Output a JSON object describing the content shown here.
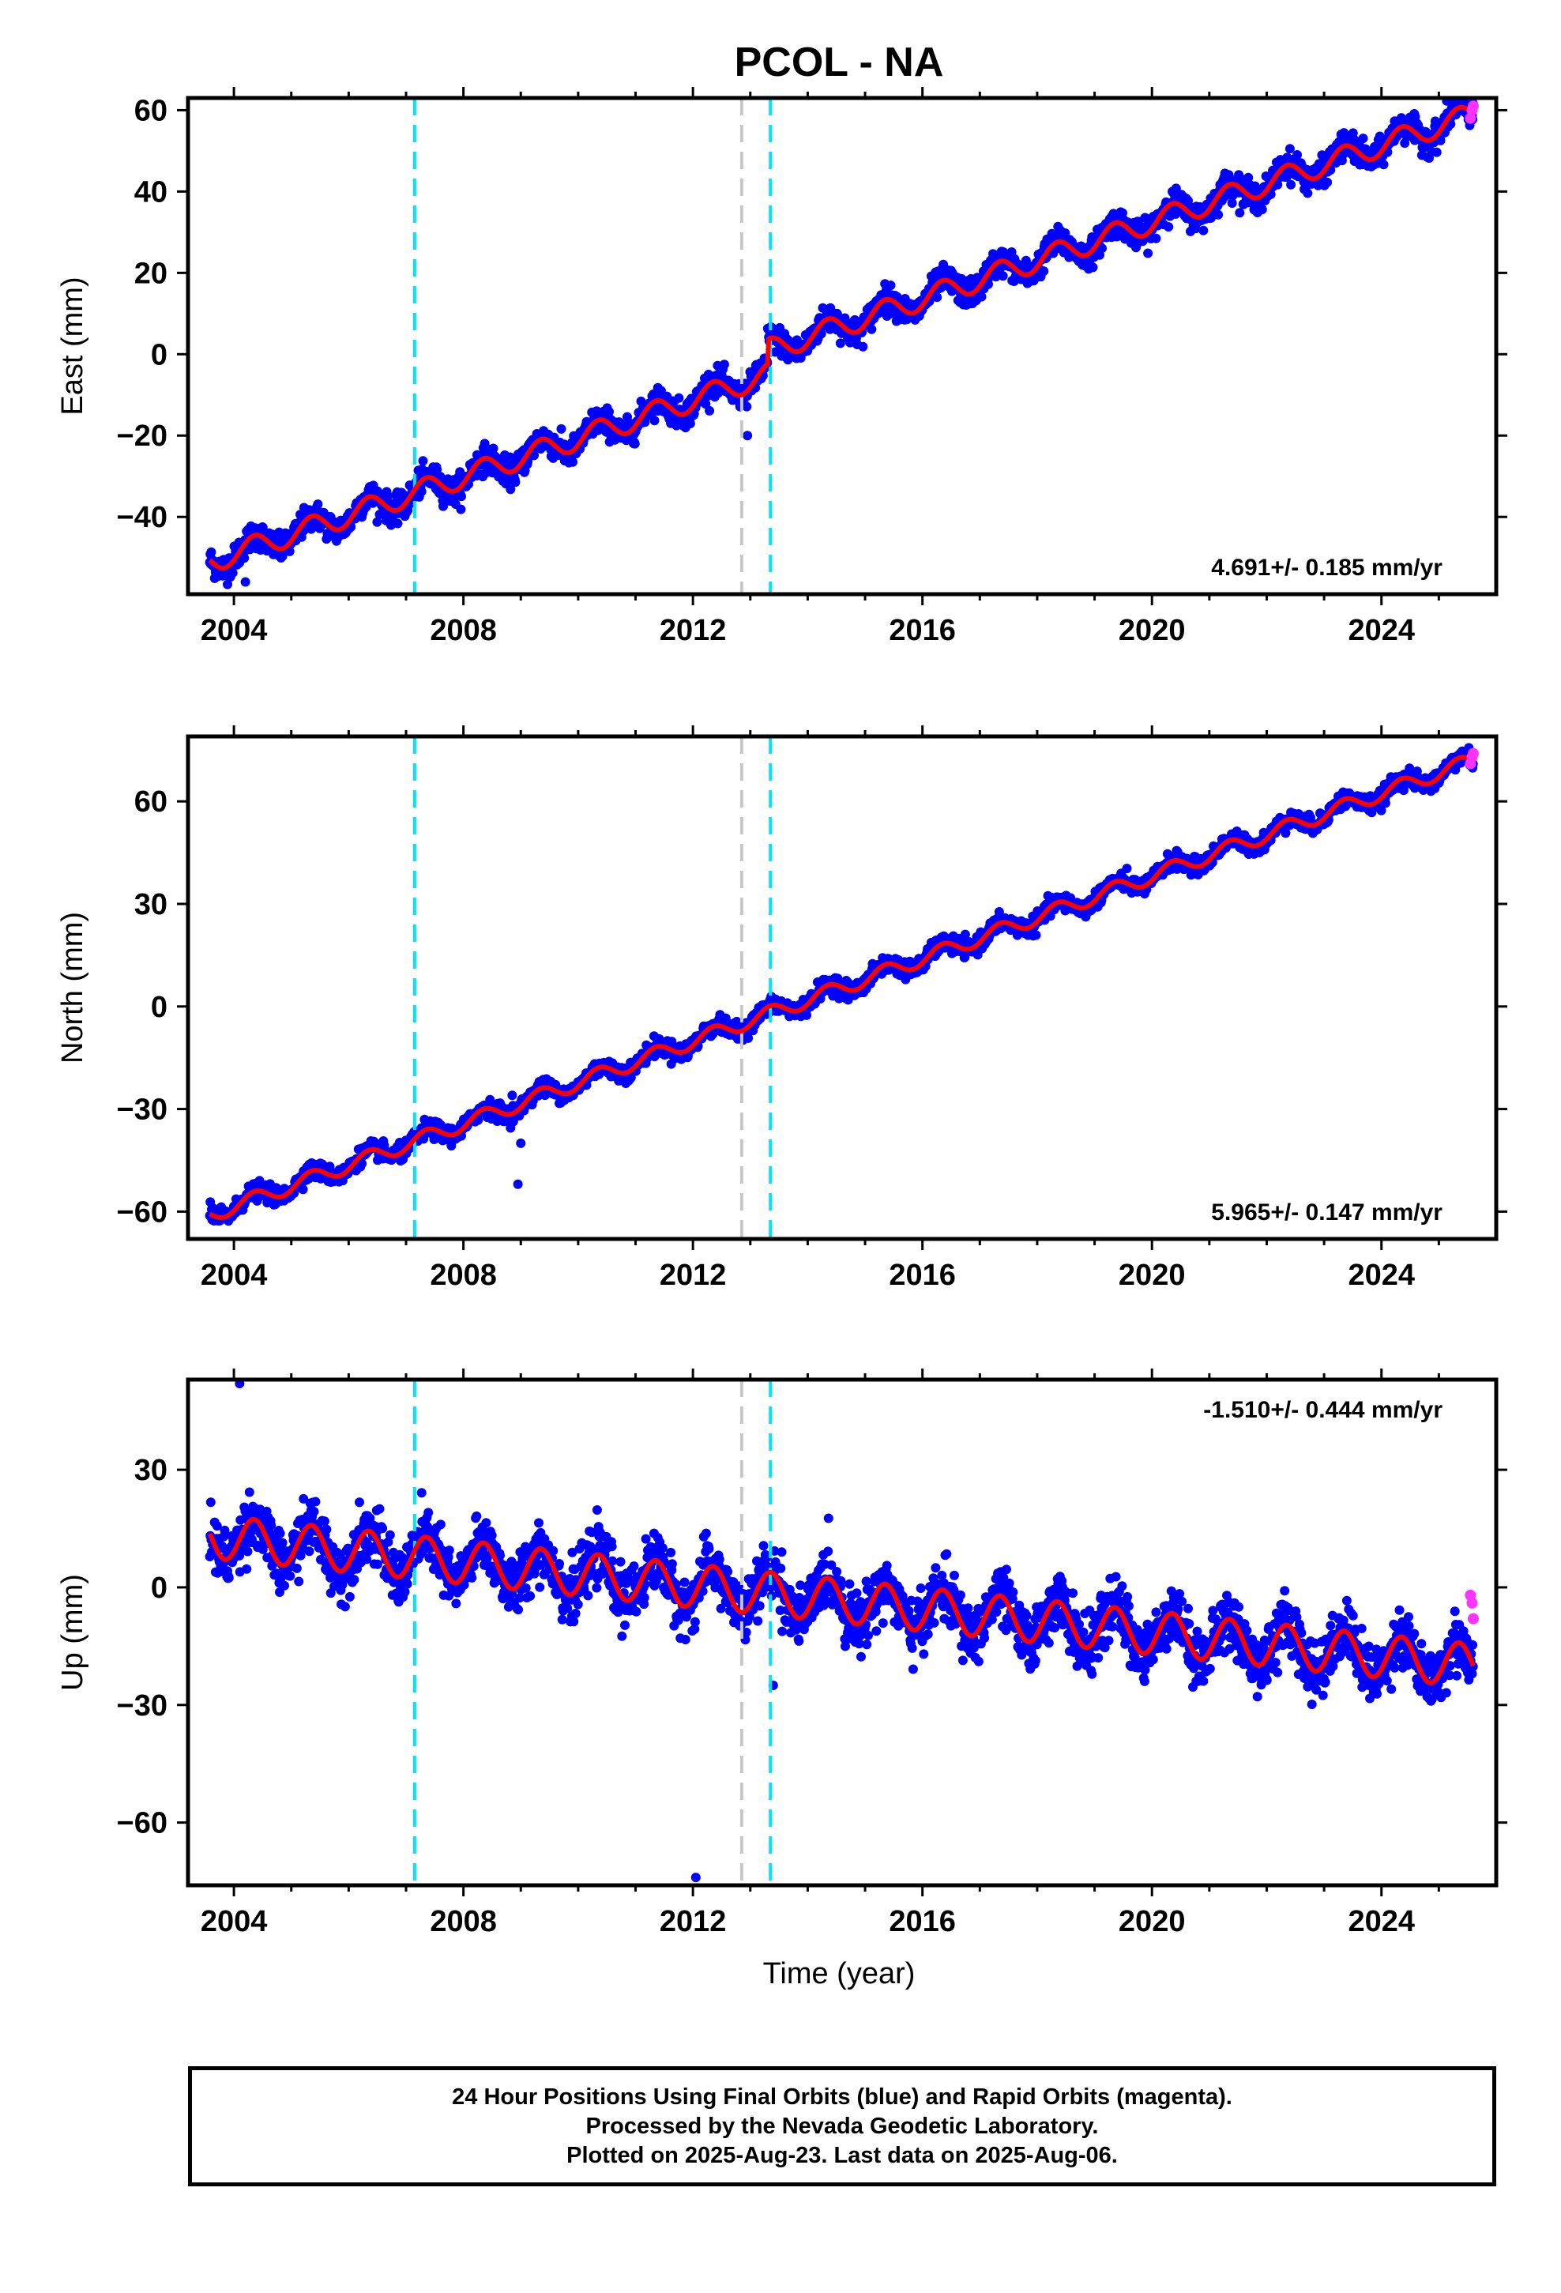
{
  "title": "PCOL - NA",
  "xlabel": "Time (year)",
  "colors": {
    "final_orbits": "#0000ff",
    "rapid_orbits": "#ff33ff",
    "model": "#ff0000",
    "antenna_change": "#00e5ff",
    "equipment_change": "#c8c8c8",
    "frame": "#000000"
  },
  "footer": {
    "line1": "24 Hour Positions Using Final Orbits (blue) and Rapid Orbits (magenta).",
    "line2": "Processed by the Nevada Geodetic Laboratory.",
    "line3": "Plotted on 2025-Aug-23. Last data on 2025-Aug-06."
  },
  "chart_data": [
    {
      "type": "scatter",
      "name": "east",
      "ylabel": "East (mm)",
      "rate_label": "4.691+/- 0.185 mm/yr",
      "rate_position": "bottom-right",
      "xlim": [
        2003.2,
        2026.0
      ],
      "ylim": [
        -59,
        63
      ],
      "x_ticks": [
        2004,
        2008,
        2012,
        2016,
        2020,
        2024
      ],
      "y_ticks": [
        -40,
        -20,
        0,
        20,
        40,
        60
      ],
      "y_tick_labels": [
        "−40",
        "−20",
        "0",
        "20",
        "40",
        "60"
      ],
      "x_tick_labels": [
        "2004",
        "2008",
        "2012",
        "2016",
        "2020",
        "2024"
      ],
      "x_start": 2003.58,
      "x_end": 2025.6,
      "trend": {
        "value_at_start": -48,
        "value_at_end": 56
      },
      "steps": [
        {
          "x": 2013.3,
          "size": 6
        }
      ],
      "seasonal_amplitude": 2.8,
      "scatter_spread": 3.0,
      "vertical_lines": [
        {
          "x": 2007.15,
          "kind": "antenna_change"
        },
        {
          "x": 2012.85,
          "kind": "equipment_change"
        },
        {
          "x": 2013.35,
          "kind": "antenna_change"
        }
      ],
      "outliers": [
        {
          "x": 2012.1,
          "y": -9
        },
        {
          "x": 2012.95,
          "y": -20
        },
        {
          "x": 2004.2,
          "y": -56
        }
      ],
      "rapid_points": {
        "x": [
          2025.55,
          2025.58,
          2025.6
        ],
        "y": [
          58,
          60,
          61
        ]
      }
    },
    {
      "type": "scatter",
      "name": "north",
      "ylabel": "North (mm)",
      "rate_label": "5.965+/- 0.147 mm/yr",
      "rate_position": "bottom-right",
      "xlim": [
        2003.2,
        2026.0
      ],
      "ylim": [
        -68,
        79
      ],
      "x_ticks": [
        2004,
        2008,
        2012,
        2016,
        2020,
        2024
      ],
      "y_ticks": [
        -60,
        -30,
        0,
        30,
        60
      ],
      "y_tick_labels": [
        "−60",
        "−30",
        "0",
        "30",
        "60"
      ],
      "x_tick_labels": [
        "2004",
        "2008",
        "2012",
        "2016",
        "2020",
        "2024"
      ],
      "x_start": 2003.58,
      "x_end": 2025.6,
      "trend": {
        "value_at_start": -61,
        "value_at_end": 72
      },
      "steps": [],
      "seasonal_amplitude": 2.2,
      "scatter_spread": 2.2,
      "vertical_lines": [
        {
          "x": 2007.15,
          "kind": "antenna_change"
        },
        {
          "x": 2012.85,
          "kind": "equipment_change"
        },
        {
          "x": 2013.35,
          "kind": "antenna_change"
        }
      ],
      "outliers": [
        {
          "x": 2008.85,
          "y": -26
        },
        {
          "x": 2008.95,
          "y": -52
        },
        {
          "x": 2009.0,
          "y": -40
        }
      ],
      "rapid_points": {
        "x": [
          2025.55,
          2025.58,
          2025.6
        ],
        "y": [
          71,
          73,
          74
        ]
      }
    },
    {
      "type": "scatter",
      "name": "up",
      "ylabel": "Up (mm)",
      "rate_label": "-1.510+/- 0.444 mm/yr",
      "rate_position": "top-right",
      "xlim": [
        2003.2,
        2026.0
      ],
      "ylim": [
        -76,
        53
      ],
      "x_ticks": [
        2004,
        2008,
        2012,
        2016,
        2020,
        2024
      ],
      "y_ticks": [
        -60,
        -30,
        0,
        30
      ],
      "y_tick_labels": [
        "−60",
        "−30",
        "0",
        "30"
      ],
      "x_tick_labels": [
        "2004",
        "2008",
        "2012",
        "2016",
        "2020",
        "2024"
      ],
      "x_start": 2003.58,
      "x_end": 2025.6,
      "trend": {
        "value_at_start": 13,
        "value_at_end": -20
      },
      "steps": [],
      "seasonal_amplitude": 5.5,
      "scatter_spread": 6.5,
      "vertical_lines": [
        {
          "x": 2007.15,
          "kind": "antenna_change"
        },
        {
          "x": 2012.85,
          "kind": "equipment_change"
        },
        {
          "x": 2013.35,
          "kind": "antenna_change"
        }
      ],
      "outliers": [
        {
          "x": 2004.1,
          "y": 52
        },
        {
          "x": 2012.05,
          "y": -74
        },
        {
          "x": 2013.4,
          "y": -25
        }
      ],
      "rapid_points": {
        "x": [
          2025.55,
          2025.58,
          2025.6
        ],
        "y": [
          -2,
          -4,
          -8
        ]
      }
    }
  ]
}
